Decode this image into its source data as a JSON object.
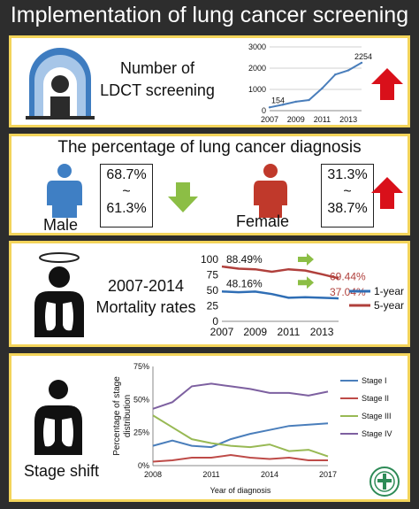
{
  "title": "Implementation of lung cancer screening",
  "panel1": {
    "label_line1": "Number of",
    "label_line2": "LDCT screening",
    "trend": "up"
  },
  "panel2": {
    "heading": "The percentage of lung cancer diagnosis",
    "male": {
      "label": "Male",
      "from": "68.7%",
      "sep": "~",
      "to": "61.3%",
      "trend": "down"
    },
    "female": {
      "label": "Female",
      "from": "31.3%",
      "sep": "~",
      "to": "38.7%",
      "trend": "up"
    }
  },
  "panel3": {
    "label_line1": "2007-2014",
    "label_line2": "Mortality rates"
  },
  "panel4": {
    "label": "Stage shift"
  },
  "chart_data": [
    {
      "type": "line",
      "x": [
        2007,
        2008,
        2009,
        2010,
        2011,
        2012,
        2013,
        2014
      ],
      "series": [
        {
          "values": [
            154,
            280,
            420,
            500,
            1050,
            1700,
            1900,
            2254
          ]
        }
      ],
      "annotations": [
        "154",
        "2254"
      ],
      "xticks": [
        "2007",
        "2009",
        "2011",
        "2013"
      ],
      "yticks": [
        "0",
        "1000",
        "2000",
        "3000"
      ],
      "ylim": [
        0,
        3000
      ]
    },
    {
      "type": "line",
      "x": [
        2007,
        2008,
        2009,
        2010,
        2011,
        2012,
        2013,
        2014
      ],
      "series": [
        {
          "name": "1-year",
          "values": [
            48.16,
            47,
            48,
            44,
            38,
            39,
            38,
            37.04
          ],
          "color": "#2f6eb5"
        },
        {
          "name": "5-year",
          "values": [
            88.49,
            85,
            84,
            80,
            84,
            82,
            76,
            69.44
          ],
          "color": "#b0403c"
        }
      ],
      "annotations": [
        "88.49%",
        "48.16%",
        "69.44%",
        "37.04%"
      ],
      "xticks": [
        "2007",
        "2009",
        "2011",
        "2013"
      ],
      "yticks": [
        "0",
        "25",
        "50",
        "75",
        "100"
      ],
      "ylim": [
        0,
        100
      ]
    },
    {
      "type": "line",
      "x": [
        2008,
        2009,
        2010,
        2011,
        2012,
        2013,
        2014,
        2015,
        2016,
        2017
      ],
      "series": [
        {
          "name": "Stage I",
          "values": [
            15,
            19,
            15,
            14,
            20,
            24,
            27,
            30,
            31,
            32
          ],
          "color": "#4a7ebb"
        },
        {
          "name": "Stage II",
          "values": [
            3,
            4,
            6,
            6,
            8,
            6,
            5,
            6,
            4,
            4
          ],
          "color": "#be4b48"
        },
        {
          "name": "Stage III",
          "values": [
            38,
            29,
            20,
            17,
            15,
            14,
            16,
            11,
            12,
            7
          ],
          "color": "#98b954"
        },
        {
          "name": "Stage IV",
          "values": [
            43,
            48,
            60,
            62,
            60,
            58,
            55,
            55,
            53,
            56
          ],
          "color": "#7d60a0"
        }
      ],
      "ylabel": "Percentage of stage distribution",
      "xlabel": "Year of diagnosis",
      "xticks": [
        "2008",
        "2011",
        "2014",
        "2017"
      ],
      "yticks": [
        "0%",
        "25%",
        "50%",
        "75%"
      ],
      "ylim": [
        0,
        75
      ]
    }
  ],
  "colors": {
    "up_arrow": "#d9101a",
    "down_arrow": "#8cbe45",
    "male": "#3f7fc4",
    "female": "#c0392b",
    "panel_border": "#f3d45a"
  },
  "icons": [
    "ct-scanner-icon",
    "male-figure-icon",
    "female-figure-icon",
    "angel-lungs-icon",
    "lungs-person-icon",
    "hospital-logo-icon"
  ]
}
